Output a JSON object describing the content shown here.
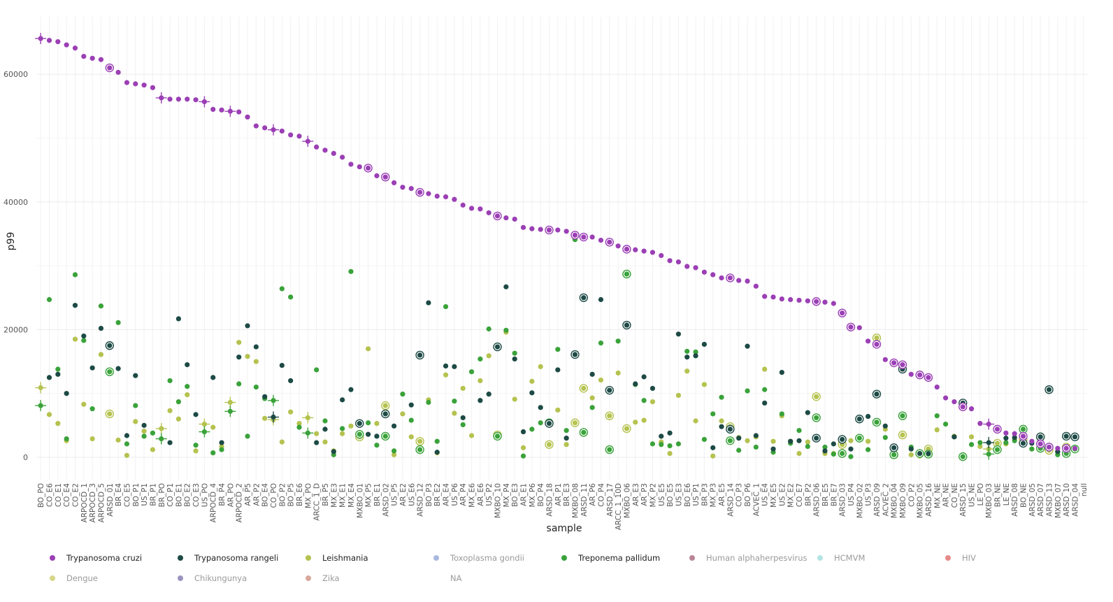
{
  "chart_data": {
    "type": "scatter",
    "title": "",
    "xlabel": "sample",
    "ylabel": "p99",
    "ylim": [
      -3500,
      69000
    ],
    "yticks": [
      0,
      20000,
      40000,
      60000
    ],
    "grid": true,
    "legend_position": "bottom",
    "colors": {
      "Trypanosoma cruzi": "#9b3fb5",
      "Trypanosoma rangeli": "#1d4a45",
      "Leishmania": "#b5c24f",
      "Toxoplasma gondii": "#a9b8e0",
      "Treponema pallidum": "#3aa23a",
      "Human alphaherpesvirus": "#b98598",
      "HCMVM": "#b4e4e4",
      "HIV": "#e88a8a",
      "Dengue": "#d7d68a",
      "Chikungunya": "#9a94c0",
      "Zika": "#d8a89c",
      "NA": "#bbbbbb"
    },
    "legend": [
      {
        "name": "Trypanosoma cruzi",
        "active": true
      },
      {
        "name": "Trypanosoma rangeli",
        "active": true
      },
      {
        "name": "Leishmania",
        "active": true
      },
      {
        "name": "Toxoplasma gondii",
        "active": false
      },
      {
        "name": "Treponema pallidum",
        "active": true
      },
      {
        "name": "Human alphaherpesvirus",
        "active": false
      },
      {
        "name": "HCMVM",
        "active": false
      },
      {
        "name": "HIV",
        "active": false
      },
      {
        "name": "Dengue",
        "active": false
      },
      {
        "name": "Chikungunya",
        "active": false
      },
      {
        "name": "Zika",
        "active": false
      },
      {
        "name": "NA",
        "active": false
      }
    ],
    "categories": [
      "BO_PO",
      "CO_E6",
      "CO_E1",
      "CO_E4",
      "CO_E2",
      "ARPOCD_1",
      "ARPOCD_3",
      "ARPOCD_5",
      "ARSD_01",
      "BR_E4",
      "CO_E5",
      "BO_P1",
      "US_P1",
      "BR_P1",
      "BR_PO",
      "CO_P1",
      "BO_E1",
      "BO_E2",
      "CO_E3",
      "US_PO",
      "ARPOCD_4",
      "BR_P4",
      "AR_PO",
      "ARPOCD_2",
      "AR_P5",
      "AR_P2",
      "BO_E4",
      "CO_PO",
      "BO_P2",
      "BO_P5",
      "BR_E6",
      "MX_PO",
      "ARCC_1_D",
      "BR_P5",
      "MX_E3",
      "MX_E1",
      "MX_E4",
      "MXBO_01",
      "MX_P5",
      "BR_E1",
      "ARSD_02",
      "US_P5",
      "AR_E2",
      "US_E6",
      "ARSD_12",
      "BO_P3",
      "BR_E2",
      "AR_E4",
      "US_P6",
      "AR_P4",
      "MX_E6",
      "AR_E6",
      "US_P2",
      "MXBO_10",
      "MX_P4",
      "BO_E3",
      "AR_E1",
      "MX_P6",
      "BO_P4",
      "ARSD_18",
      "AR_P1",
      "BR_E3",
      "MXBO_08",
      "ARSD_11",
      "AR_P6",
      "CO_P4",
      "ARSD_17",
      "ARCC_1_10D",
      "MXBO_06",
      "AR_E3",
      "AR_P3",
      "MX_P2",
      "US_E5",
      "BO_E5",
      "US_E3",
      "BO_E6",
      "US_P1",
      "BR_P3",
      "MX_P3",
      "AR_E5",
      "ARSD_14",
      "CO_P3",
      "BO_P6",
      "ACVEC_1",
      "US_E4",
      "MX_E5",
      "US_E2",
      "MX_E2",
      "CO_E7",
      "BR_P2",
      "ARSD_06",
      "BR_E5",
      "BR_E7",
      "ARSD_03",
      "US_P4",
      "MXBO_02",
      "US_P3",
      "ARSD_09",
      "ACVEC_2",
      "MXBO_04",
      "MXBO_09",
      "CO_P2",
      "MXBO_05",
      "ARSD_16",
      "MX_NE",
      "AR_NE",
      "CO_NE",
      "ARSD_15",
      "US_NE",
      "LE_PO",
      "MXBO_03",
      "BR_NE",
      "LE_NE",
      "ARSD_08",
      "BO_NE",
      "ARSD_05",
      "ARSD_07",
      "ARSD_13",
      "MXBO_07",
      "ARSD_10",
      "ARSD_04",
      "null"
    ],
    "series": [
      {
        "name": "Trypanosoma cruzi",
        "values": [
          65600,
          65300,
          65100,
          64600,
          64100,
          62800,
          62500,
          62300,
          61000,
          60300,
          58700,
          58500,
          58300,
          57900,
          56300,
          56100,
          56100,
          56100,
          56000,
          55700,
          54500,
          54400,
          54200,
          54100,
          53300,
          51900,
          51600,
          51300,
          51100,
          50500,
          50300,
          49500,
          48600,
          48100,
          47600,
          47000,
          45900,
          45500,
          45300,
          44100,
          43900,
          43000,
          42300,
          42100,
          41500,
          41300,
          40900,
          40800,
          40400,
          39500,
          39000,
          38900,
          38300,
          37800,
          37500,
          37300,
          36000,
          35800,
          35700,
          35600,
          35600,
          35400,
          34800,
          34500,
          34500,
          34000,
          33700,
          33100,
          32600,
          32500,
          32300,
          32100,
          31600,
          30800,
          30600,
          29900,
          29700,
          29000,
          28600,
          28100,
          28100,
          27700,
          27600,
          26800,
          25200,
          25100,
          24800,
          24700,
          24600,
          24500,
          24400,
          24300,
          24100,
          22600,
          20400,
          20300,
          18200,
          17700,
          15300,
          14800,
          14500,
          13000,
          12900,
          12500,
          11000,
          9300,
          8700,
          7900,
          7600,
          5300,
          5200,
          4400,
          3800,
          3700,
          3300,
          2500,
          2100,
          1600,
          1400,
          1400,
          1400,
          null
        ],
        "circled": [
          8,
          38,
          40,
          44,
          53,
          59,
          62,
          63,
          66,
          68,
          80,
          90,
          93,
          94,
          97,
          99,
          100,
          102,
          103,
          107,
          111,
          114,
          116,
          117,
          119
        ]
      },
      {
        "name": "Trypanosoma rangeli",
        "values": [
          null,
          12500,
          13000,
          10000,
          23800,
          19000,
          14000,
          20200,
          17500,
          13900,
          3400,
          12800,
          5000,
          null,
          null,
          2300,
          21700,
          14500,
          6700,
          null,
          12500,
          2300,
          null,
          15700,
          20600,
          17300,
          9500,
          6300,
          14400,
          12000,
          null,
          null,
          2300,
          4400,
          900,
          9000,
          10600,
          5300,
          3600,
          3300,
          6800,
          4900,
          null,
          8200,
          16000,
          24200,
          800,
          14300,
          14200,
          6200,
          null,
          8900,
          9900,
          17300,
          26700,
          15400,
          4000,
          10100,
          7800,
          5300,
          13700,
          3000,
          16100,
          25000,
          13000,
          24700,
          10500,
          null,
          20700,
          11500,
          12600,
          10800,
          3300,
          3800,
          19300,
          15700,
          15900,
          17700,
          1500,
          4800,
          4400,
          3000,
          17400,
          3400,
          8500,
          1300,
          13300,
          2500,
          2600,
          7000,
          3000,
          1000,
          2100,
          2800,
          1300,
          6000,
          6400,
          9900,
          4900,
          1500,
          13800,
          1300,
          600,
          600,
          null,
          null,
          3200,
          8500,
          null,
          null,
          2300,
          null,
          3000,
          3100,
          2200,
          2200,
          3200,
          10600,
          900,
          3300,
          3200,
          null
        ],
        "circled": [
          8,
          37,
          40,
          44,
          53,
          59,
          62,
          63,
          66,
          68,
          80,
          90,
          93,
          95,
          97,
          99,
          100,
          107,
          114,
          116,
          117,
          119,
          120
        ]
      },
      {
        "name": "Treponema pallidum",
        "values": [
          8100,
          24700,
          13800,
          2900,
          28600,
          18300,
          7600,
          23700,
          13400,
          21100,
          2100,
          8100,
          3300,
          3800,
          2900,
          12000,
          8700,
          11100,
          1900,
          4000,
          700,
          1200,
          7200,
          11500,
          3300,
          11000,
          9200,
          8900,
          26400,
          25100,
          4700,
          3800,
          13700,
          5700,
          400,
          4500,
          29100,
          3600,
          5400,
          1900,
          3300,
          1000,
          9900,
          5800,
          1200,
          8600,
          2500,
          23600,
          8800,
          5100,
          13400,
          15400,
          20100,
          3300,
          19900,
          16300,
          200,
          4400,
          5400,
          5400,
          16900,
          4200,
          34100,
          3900,
          7800,
          17900,
          1200,
          18200,
          28700,
          11400,
          8900,
          2100,
          2000,
          1800,
          2100,
          16600,
          16500,
          2800,
          6800,
          9400,
          2600,
          1100,
          10400,
          1600,
          10600,
          800,
          6800,
          2200,
          4200,
          1700,
          6200,
          1600,
          500,
          600,
          100,
          3000,
          1200,
          5500,
          3100,
          400,
          6500,
          1600,
          600,
          500,
          6500,
          5200,
          3200,
          100,
          2000,
          2300,
          500,
          1200,
          2300,
          2600,
          4400,
          1300,
          1400,
          1600,
          400,
          600,
          1300,
          null
        ],
        "circled": [
          8,
          37,
          40,
          44,
          53,
          59,
          63,
          66,
          68,
          80,
          90,
          93,
          95,
          97,
          99,
          100,
          102,
          103,
          107,
          111,
          114,
          116,
          117,
          119,
          120
        ]
      },
      {
        "name": "Leishmania",
        "values": [
          10900,
          6700,
          5300,
          2600,
          18500,
          8300,
          2900,
          16100,
          6800,
          2700,
          300,
          5600,
          4100,
          1200,
          4500,
          7300,
          6000,
          9800,
          1000,
          5200,
          4700,
          1700,
          8600,
          18000,
          15800,
          15000,
          6100,
          5900,
          2400,
          7100,
          5300,
          6200,
          3700,
          2400,
          1000,
          3700,
          4900,
          3200,
          17000,
          5300,
          8100,
          400,
          6800,
          3200,
          2500,
          9000,
          700,
          12900,
          6900,
          10800,
          3400,
          12000,
          15900,
          3500,
          19600,
          9100,
          1500,
          11900,
          14200,
          2000,
          7400,
          2000,
          5400,
          10800,
          9300,
          12100,
          6500,
          13200,
          4500,
          5500,
          5800,
          8700,
          2400,
          600,
          9700,
          13500,
          5700,
          11400,
          200,
          5700,
          4800,
          3100,
          2600,
          3200,
          13800,
          2500,
          6500,
          2500,
          600,
          2400,
          9500,
          600,
          600,
          2000,
          2600,
          3000,
          2500,
          18700,
          4400,
          400,
          3500,
          400,
          200,
          1300,
          4300,
          null,
          3300,
          null,
          3200,
          1700,
          1300,
          2200,
          2100,
          2800,
          2800,
          1300,
          3200,
          1100,
          800,
          1600,
          1100,
          null
        ],
        "circled": [
          8,
          37,
          40,
          44,
          53,
          59,
          62,
          63,
          66,
          68,
          80,
          90,
          93,
          97,
          99,
          100,
          103,
          107,
          111,
          114,
          116,
          117,
          119
        ]
      }
    ],
    "error_bar_indices": [
      0,
      14,
      19,
      22,
      27,
      31,
      110
    ]
  }
}
